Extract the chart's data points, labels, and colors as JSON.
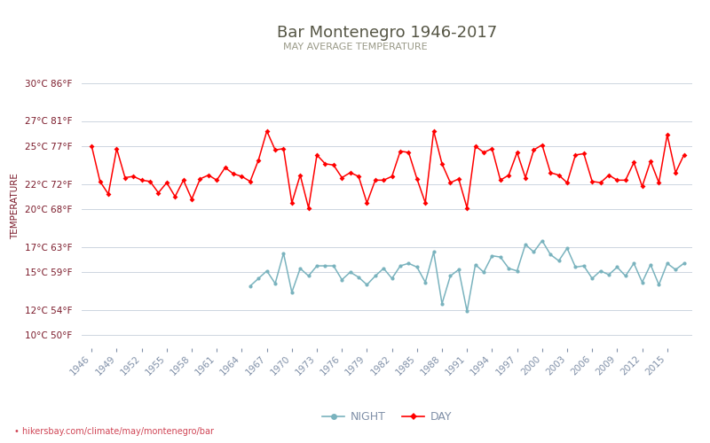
{
  "title": "Bar Montenegro 1946-2017",
  "subtitle": "MAY AVERAGE TEMPERATURE",
  "ylabel": "TEMPERATURE",
  "xlabel_url": "hikersbay.com/climate/may/montenegro/bar",
  "bg_color": "#ffffff",
  "plot_bg_color": "#ffffff",
  "grid_color": "#cdd5e0",
  "title_color": "#555544",
  "subtitle_color": "#9a9a88",
  "ylabel_color": "#7b1a2a",
  "tick_color": "#7b1a2a",
  "xtick_color": "#8090a8",
  "ytick_labels": [
    "10°C 50°F",
    "12°C 54°F",
    "15°C 59°F",
    "17°C 63°F",
    "20°C 68°F",
    "22°C 72°F",
    "25°C 77°F",
    "27°C 81°F",
    "30°C 86°F"
  ],
  "ytick_values": [
    10,
    12,
    15,
    17,
    20,
    22,
    25,
    27,
    30
  ],
  "ylim": [
    9.0,
    31.5
  ],
  "years": [
    1946,
    1947,
    1948,
    1949,
    1950,
    1951,
    1952,
    1953,
    1954,
    1955,
    1956,
    1957,
    1958,
    1959,
    1960,
    1961,
    1962,
    1963,
    1964,
    1965,
    1966,
    1967,
    1968,
    1969,
    1970,
    1971,
    1972,
    1973,
    1974,
    1975,
    1976,
    1977,
    1978,
    1979,
    1980,
    1981,
    1982,
    1983,
    1984,
    1985,
    1986,
    1987,
    1988,
    1989,
    1990,
    1991,
    1992,
    1993,
    1994,
    1995,
    1996,
    1997,
    1998,
    1999,
    2000,
    2001,
    2002,
    2003,
    2004,
    2005,
    2006,
    2007,
    2008,
    2009,
    2010,
    2011,
    2012,
    2013,
    2014,
    2015,
    2016,
    2017
  ],
  "day_temps": [
    25.0,
    22.2,
    21.2,
    24.8,
    22.5,
    22.6,
    22.3,
    22.2,
    21.3,
    22.1,
    21.0,
    22.3,
    20.8,
    22.4,
    22.7,
    22.3,
    23.3,
    22.8,
    22.6,
    22.2,
    23.9,
    26.2,
    24.7,
    24.8,
    20.5,
    22.7,
    20.1,
    24.3,
    23.6,
    23.5,
    22.5,
    22.9,
    22.6,
    20.5,
    22.3,
    22.3,
    22.6,
    24.6,
    24.5,
    22.4,
    20.5,
    26.2,
    23.6,
    22.1,
    22.4,
    20.1,
    25.0,
    24.5,
    24.8,
    22.3,
    22.7,
    24.5,
    22.5,
    24.7,
    25.1,
    22.9,
    22.7,
    22.1,
    24.3,
    24.4,
    22.2,
    22.1,
    22.7,
    22.3,
    22.3,
    23.7,
    21.8,
    23.8,
    22.1,
    25.9,
    22.9,
    24.3
  ],
  "night_temps": [
    null,
    null,
    null,
    null,
    null,
    null,
    null,
    null,
    null,
    null,
    null,
    null,
    null,
    null,
    null,
    null,
    null,
    null,
    null,
    13.9,
    14.5,
    15.1,
    14.1,
    16.5,
    13.4,
    15.3,
    14.7,
    15.5,
    15.5,
    15.5,
    14.4,
    15.0,
    14.6,
    14.0,
    14.7,
    15.3,
    14.5,
    15.5,
    15.7,
    15.4,
    14.2,
    16.6,
    12.5,
    14.7,
    15.2,
    11.9,
    15.6,
    15.0,
    16.3,
    16.2,
    15.3,
    15.1,
    17.2,
    16.6,
    17.5,
    16.4,
    15.9,
    16.9,
    15.4,
    15.5,
    14.5,
    15.1,
    14.8,
    15.4,
    14.7,
    15.7,
    14.2,
    15.6,
    14.0,
    15.7,
    15.2,
    15.7
  ],
  "day_color": "#ff0000",
  "night_color": "#7ab3be",
  "day_marker": "D",
  "night_marker": "o",
  "line_width": 1.1,
  "marker_size": 3.0,
  "xtick_years": [
    1946,
    1949,
    1952,
    1955,
    1958,
    1961,
    1964,
    1967,
    1970,
    1973,
    1976,
    1979,
    1982,
    1985,
    1988,
    1991,
    1994,
    1997,
    2000,
    2003,
    2006,
    2009,
    2012,
    2015
  ]
}
